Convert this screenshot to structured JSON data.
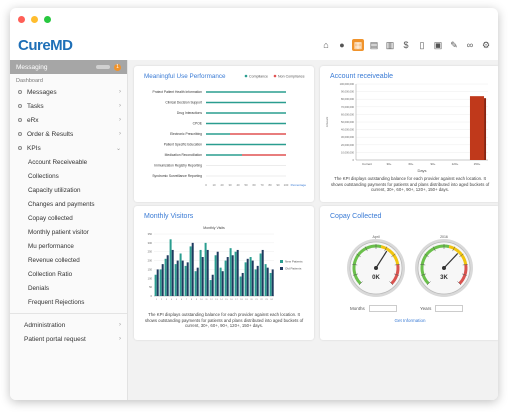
{
  "window": {
    "dots": [
      "#ff5f57",
      "#ffbd2e",
      "#28c840"
    ]
  },
  "app": {
    "logo": "CureMD"
  },
  "toolbar": {
    "icons": [
      "home-icon",
      "user-icon",
      "dashboard-icon",
      "clipboard-icon",
      "calendar-icon",
      "dollar-icon",
      "document-icon",
      "film-icon",
      "pen-icon",
      "link-icon",
      "gear-icon"
    ],
    "active_index": 2
  },
  "sidebar": {
    "header": "Messaging",
    "badge": "1",
    "section": "Dashboard",
    "items": [
      {
        "label": "Messages",
        "chevron": "›"
      },
      {
        "label": "Tasks",
        "chevron": "›"
      },
      {
        "label": "eRx",
        "chevron": "›"
      },
      {
        "label": "Order & Results",
        "chevron": "›"
      },
      {
        "label": "KPIs",
        "chevron": "⌄"
      }
    ],
    "kpi_items": [
      "Account Receiveable",
      "Collections",
      "Capacity utilization",
      "Changes and payments",
      "Copay collected",
      "Monthly patient visitor",
      "Mu performance",
      "Revenue collected",
      "Collection Ratio",
      "Denials",
      "Frequent Rejections"
    ],
    "bottom_items": [
      {
        "label": "Administration",
        "chevron": "›"
      },
      {
        "label": "Patient portal request",
        "chevron": "›"
      }
    ]
  },
  "mu_card": {
    "title": "Meaningful Use Performance",
    "legend": [
      "Compliance",
      "Non Compliance"
    ],
    "footer_link": "Percentage"
  },
  "ar_card": {
    "title": "Account receiveable",
    "caption": "The KPI displays outstanding balance for each provider against each location. It shows outstanding payments for patients and plans distributed into aged buckets of current, 30+, 60+, 90+, 120+, 150+ days."
  },
  "mv_card": {
    "title": "Monthly Visitors",
    "chart_title": "Monthly Visits",
    "caption": "The KPI displays outstanding balance for each provider against each location. It shows outstanding payments for patients and plans distributed into aged buckets of current, 30+, 60+, 90+, 120+, 150+ days."
  },
  "copay_card": {
    "title": "Copay Collected",
    "gauges": [
      {
        "top_label": "April",
        "value_label": "0K",
        "fraction": 0.62
      },
      {
        "top_label": "2016",
        "value_label": "3K",
        "fraction": 0.66
      }
    ],
    "month_label": "Months",
    "year_label": "Years",
    "month_value": "",
    "year_value": "",
    "submit_label": "Get Information"
  },
  "colors": {
    "accent": "#3a7bd5",
    "orange": "#f0932b",
    "teal": "#2a9d8f",
    "red": "#e05252",
    "navy": "#1f3a5f",
    "bar_red": "#c0391b"
  },
  "chart_data": [
    {
      "type": "bar",
      "title": "Meaningful Use Performance",
      "orientation": "horizontal",
      "categories": [
        "Protect Patient Health Information",
        "Clinical Decision Support",
        "Drug Interactions",
        "CPOE",
        "Electronic Prescribing",
        "Patient Specific Education",
        "Medication Reconciliation",
        "Immunization Registry Reporting",
        "Syndromic Surveillance Reporting"
      ],
      "series": [
        {
          "name": "Compliance",
          "values": [
            100,
            100,
            100,
            100,
            30,
            100,
            45,
            0,
            0
          ]
        },
        {
          "name": "Non Compliance",
          "values": [
            0,
            0,
            0,
            0,
            70,
            0,
            55,
            0,
            0
          ]
        }
      ],
      "xlim": [
        0,
        100
      ],
      "xlabel": "Percentage"
    },
    {
      "type": "bar",
      "title": "Account receiveable",
      "categories": [
        "Current",
        "30+",
        "60+",
        "90+",
        "120+",
        "150+"
      ],
      "values": [
        0,
        0,
        0,
        0,
        0,
        84000000
      ],
      "ylim": [
        0,
        100000000
      ],
      "yticks": [
        "100,000,000",
        "90,000,000",
        "80,000,000",
        "70,000,000",
        "60,000,000",
        "50,000,000",
        "40,000,000",
        "30,000,000",
        "20,000,000",
        "10,000,000",
        "0"
      ],
      "ylabel": "Amount",
      "xlabel": "Days"
    },
    {
      "type": "bar",
      "title": "Monthly Visits",
      "categories": [
        "1",
        "2",
        "3",
        "4",
        "5",
        "6",
        "7",
        "8",
        "9",
        "10",
        "11",
        "12",
        "13",
        "14",
        "15",
        "16",
        "17",
        "18",
        "19",
        "20",
        "21",
        "22",
        "23",
        "24"
      ],
      "series": [
        {
          "name": "New Patients",
          "values": [
            120,
            150,
            210,
            320,
            180,
            240,
            170,
            280,
            140,
            260,
            300,
            90,
            230,
            160,
            200,
            270,
            250,
            110,
            190,
            220,
            150,
            240,
            180,
            130
          ]
        },
        {
          "name": "Old Patients",
          "values": [
            150,
            180,
            230,
            260,
            200,
            200,
            190,
            300,
            160,
            220,
            260,
            120,
            250,
            140,
            220,
            230,
            260,
            130,
            210,
            200,
            170,
            260,
            160,
            150
          ]
        }
      ],
      "ylim": [
        0,
        350
      ],
      "legend": "right"
    }
  ]
}
